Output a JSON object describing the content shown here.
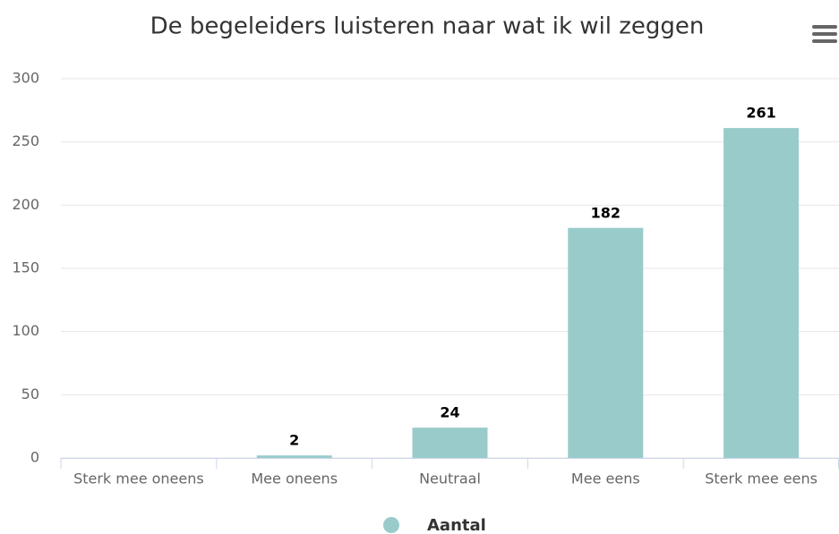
{
  "chart_data": {
    "type": "bar",
    "title": "De begeleiders luisteren naar wat ik wil zeggen",
    "categories": [
      "Sterk mee oneens",
      "Mee oneens",
      "Neutraal",
      "Mee eens",
      "Sterk mee eens"
    ],
    "series": [
      {
        "name": "Aantal",
        "color": "#9acbcb",
        "values": [
          null,
          2,
          24,
          182,
          261
        ]
      }
    ],
    "ylim": [
      0,
      300
    ],
    "yticks": [
      0,
      50,
      100,
      150,
      200,
      250,
      300
    ],
    "grid": true,
    "legend": "bottom"
  }
}
